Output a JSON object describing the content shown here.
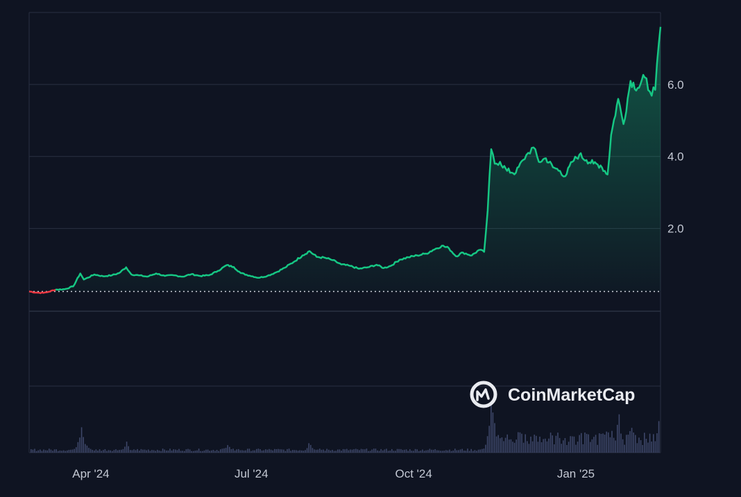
{
  "watermark": {
    "brand": "CoinMarketCap",
    "icon": "coinmarketcap-logo-icon"
  },
  "colors": {
    "background": "#0f1422",
    "line_up": "#16c784",
    "line_down": "#ea3943",
    "grid": "#2a3142",
    "volume": "#3d4668",
    "baseline": "#cfd3dc"
  },
  "chart_data": {
    "type": "area",
    "title": "",
    "xlabel": "",
    "ylabel": "",
    "x_ticks": [
      "Apr '24",
      "Jul '24",
      "Oct '24",
      "Jan '25"
    ],
    "y_ticks": [
      2.0,
      4.0,
      6.0
    ],
    "y_tick_labels": [
      "2.0",
      "4.0",
      "6.0"
    ],
    "ylim": [
      -0.3,
      8.0
    ],
    "grid": true,
    "legend": "none",
    "baseline_value": 0.25,
    "start_date": "2024-02-26",
    "end_date": "2025-02-18",
    "price_series": {
      "name": "",
      "points": [
        [
          "2024-02-26",
          0.25
        ],
        [
          "2024-03-01",
          0.22
        ],
        [
          "2024-03-05",
          0.21
        ],
        [
          "2024-03-08",
          0.24
        ],
        [
          "2024-03-12",
          0.3
        ],
        [
          "2024-03-17",
          0.31
        ],
        [
          "2024-03-22",
          0.39
        ],
        [
          "2024-03-26",
          0.75
        ],
        [
          "2024-03-28",
          0.58
        ],
        [
          "2024-04-03",
          0.72
        ],
        [
          "2024-04-08",
          0.67
        ],
        [
          "2024-04-13",
          0.7
        ],
        [
          "2024-04-17",
          0.76
        ],
        [
          "2024-04-21",
          0.92
        ],
        [
          "2024-04-24",
          0.72
        ],
        [
          "2024-04-28",
          0.7
        ],
        [
          "2024-05-03",
          0.66
        ],
        [
          "2024-05-08",
          0.75
        ],
        [
          "2024-05-13",
          0.68
        ],
        [
          "2024-05-18",
          0.7
        ],
        [
          "2024-05-23",
          0.66
        ],
        [
          "2024-05-28",
          0.73
        ],
        [
          "2024-06-02",
          0.68
        ],
        [
          "2024-06-07",
          0.7
        ],
        [
          "2024-06-12",
          0.82
        ],
        [
          "2024-06-17",
          0.98
        ],
        [
          "2024-06-21",
          0.93
        ],
        [
          "2024-06-25",
          0.76
        ],
        [
          "2024-06-30",
          0.69
        ],
        [
          "2024-07-05",
          0.63
        ],
        [
          "2024-07-10",
          0.68
        ],
        [
          "2024-07-15",
          0.78
        ],
        [
          "2024-07-20",
          0.91
        ],
        [
          "2024-07-25",
          1.07
        ],
        [
          "2024-07-30",
          1.25
        ],
        [
          "2024-08-03",
          1.37
        ],
        [
          "2024-08-07",
          1.21
        ],
        [
          "2024-08-12",
          1.18
        ],
        [
          "2024-08-16",
          1.12
        ],
        [
          "2024-08-21",
          1.0
        ],
        [
          "2024-08-26",
          0.96
        ],
        [
          "2024-08-31",
          0.88
        ],
        [
          "2024-09-05",
          0.92
        ],
        [
          "2024-09-10",
          0.99
        ],
        [
          "2024-09-14",
          0.9
        ],
        [
          "2024-09-18",
          0.96
        ],
        [
          "2024-09-23",
          1.13
        ],
        [
          "2024-09-28",
          1.2
        ],
        [
          "2024-10-03",
          1.25
        ],
        [
          "2024-10-08",
          1.3
        ],
        [
          "2024-10-12",
          1.4
        ],
        [
          "2024-10-17",
          1.52
        ],
        [
          "2024-10-21",
          1.45
        ],
        [
          "2024-10-25",
          1.23
        ],
        [
          "2024-10-29",
          1.33
        ],
        [
          "2024-11-03",
          1.25
        ],
        [
          "2024-11-07",
          1.4
        ],
        [
          "2024-11-10",
          1.35
        ],
        [
          "2024-11-12",
          2.5
        ],
        [
          "2024-11-14",
          4.2
        ],
        [
          "2024-11-16",
          3.8
        ],
        [
          "2024-11-19",
          3.85
        ],
        [
          "2024-11-23",
          3.6
        ],
        [
          "2024-11-28",
          3.55
        ],
        [
          "2024-12-02",
          3.9
        ],
        [
          "2024-12-05",
          4.1
        ],
        [
          "2024-12-08",
          4.25
        ],
        [
          "2024-12-11",
          3.85
        ],
        [
          "2024-12-15",
          3.95
        ],
        [
          "2024-12-19",
          3.7
        ],
        [
          "2024-12-23",
          3.6
        ],
        [
          "2024-12-26",
          3.45
        ],
        [
          "2024-12-30",
          3.85
        ],
        [
          "2025-01-03",
          4.05
        ],
        [
          "2025-01-07",
          3.9
        ],
        [
          "2025-01-11",
          3.8
        ],
        [
          "2025-01-15",
          3.75
        ],
        [
          "2025-01-19",
          3.5
        ],
        [
          "2025-01-21",
          4.6
        ],
        [
          "2025-01-25",
          5.6
        ],
        [
          "2025-01-28",
          4.9
        ],
        [
          "2025-02-01",
          6.1
        ],
        [
          "2025-02-05",
          5.9
        ],
        [
          "2025-02-09",
          6.2
        ],
        [
          "2025-02-12",
          5.8
        ],
        [
          "2025-02-15",
          5.85
        ],
        [
          "2025-02-18",
          7.6
        ]
      ]
    },
    "volume_series": {
      "name": "",
      "peaks": [
        [
          "2024-03-26",
          0.55
        ],
        [
          "2024-03-29",
          0.22
        ],
        [
          "2024-04-21",
          0.18
        ],
        [
          "2024-06-17",
          0.2
        ],
        [
          "2024-08-03",
          0.25
        ],
        [
          "2024-11-14",
          1.0
        ],
        [
          "2024-11-16",
          0.6
        ],
        [
          "2024-12-08",
          0.35
        ],
        [
          "2024-12-30",
          0.3
        ],
        [
          "2025-01-21",
          0.45
        ],
        [
          "2025-01-25",
          0.7
        ],
        [
          "2025-02-01",
          0.55
        ],
        [
          "2025-02-12",
          0.4
        ],
        [
          "2025-02-18",
          1.0
        ]
      ]
    }
  }
}
